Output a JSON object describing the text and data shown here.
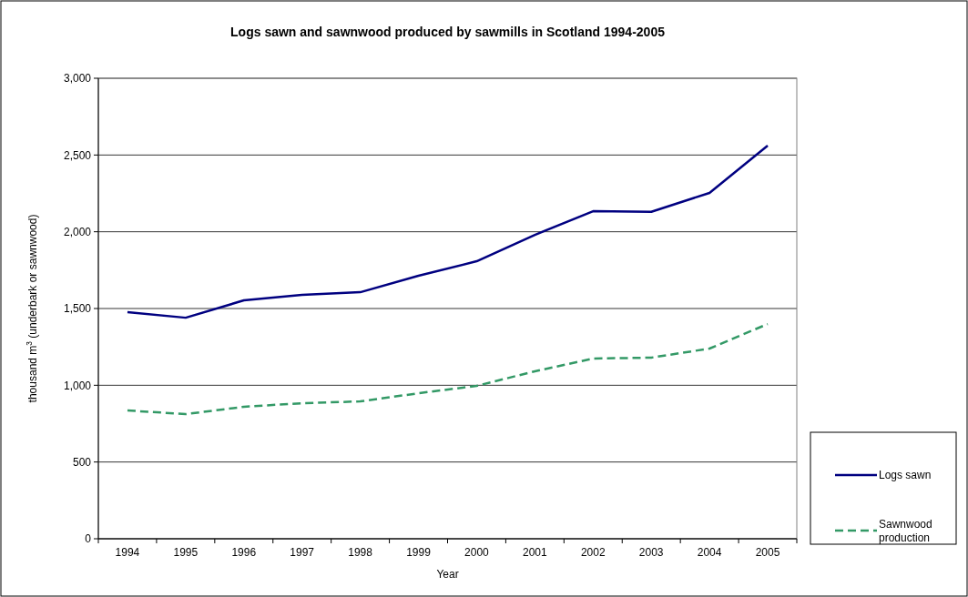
{
  "chart_data": {
    "type": "line",
    "title": "Logs sawn and sawnwood produced by sawmills in Scotland 1994-2005",
    "xlabel": "Year",
    "ylabel": "thousand m$^{3}$ (underbark or sawnwood)",
    "categories": [
      "1994",
      "1995",
      "1996",
      "1997",
      "1998",
      "1999",
      "2000",
      "2001",
      "2002",
      "2003",
      "2004",
      "2005"
    ],
    "series": [
      {
        "name": "Logs sawn",
        "color": "#000080",
        "line_style": "solid",
        "values": [
          1476,
          1440,
          1553,
          1589,
          1606,
          1713,
          1808,
          1980,
          2134,
          2130,
          2253,
          2561
        ]
      },
      {
        "name": "Sawnwood production",
        "color": "#339966",
        "line_style": "dashed",
        "values": [
          836,
          812,
          860,
          883,
          895,
          948,
          996,
          1091,
          1174,
          1180,
          1239,
          1399
        ]
      }
    ],
    "ylim": [
      0,
      3000
    ],
    "yticks": [
      {
        "value": 0,
        "label": "0"
      },
      {
        "value": 500,
        "label": "500"
      },
      {
        "value": 1000,
        "label": "1,000"
      },
      {
        "value": 1500,
        "label": "1,500"
      },
      {
        "value": 2000,
        "label": "2,000"
      },
      {
        "value": 2500,
        "label": "2,500"
      },
      {
        "value": 3000,
        "label": "3,000"
      }
    ],
    "grid": "y",
    "legend": "right"
  }
}
